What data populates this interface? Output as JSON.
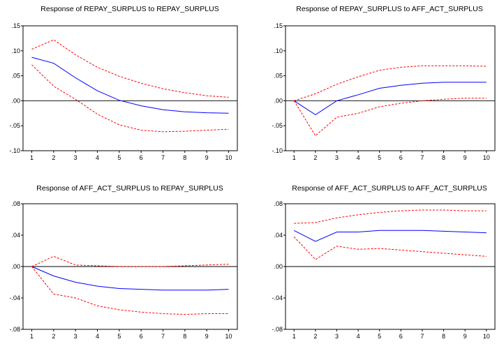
{
  "chart_data": [
    {
      "type": "line",
      "title": "Response of REPAY_SURPLUS to REPAY_SURPLUS",
      "x": [
        1,
        2,
        3,
        4,
        5,
        6,
        7,
        8,
        9,
        10
      ],
      "xlim": [
        0.6,
        10.4
      ],
      "ylim": [
        -0.1,
        0.15
      ],
      "yticks": [
        -0.1,
        -0.05,
        0.0,
        0.05,
        0.1,
        0.15
      ],
      "ytick_labels": [
        "-.10",
        "-.05",
        ".00",
        ".05",
        ".10",
        ".15"
      ],
      "zero_line": true,
      "series": [
        {
          "role": "response",
          "color": "#0000ff",
          "dashed": false,
          "values": [
            0.087,
            0.075,
            0.046,
            0.02,
            0.001,
            -0.01,
            -0.018,
            -0.022,
            -0.024,
            -0.025
          ]
        },
        {
          "role": "upper band",
          "color": "#ff0000",
          "dashed": true,
          "values": [
            0.103,
            0.122,
            0.092,
            0.067,
            0.049,
            0.035,
            0.024,
            0.016,
            0.01,
            0.007
          ]
        },
        {
          "role": "lower band",
          "color": "#ff0000",
          "dashed": true,
          "values": [
            0.072,
            0.029,
            0.003,
            -0.027,
            -0.048,
            -0.059,
            -0.062,
            -0.061,
            -0.059,
            -0.057
          ]
        }
      ]
    },
    {
      "type": "line",
      "title": "Response of REPAY_SURPLUS to AFF_ACT_SURPLUS",
      "x": [
        1,
        2,
        3,
        4,
        5,
        6,
        7,
        8,
        9,
        10
      ],
      "xlim": [
        0.6,
        10.4
      ],
      "ylim": [
        -0.1,
        0.15
      ],
      "yticks": [
        -0.1,
        -0.05,
        0.0,
        0.05,
        0.1,
        0.15
      ],
      "ytick_labels": [
        "-.10",
        "-.05",
        ".00",
        ".05",
        ".10",
        ".15"
      ],
      "zero_line": true,
      "series": [
        {
          "role": "response",
          "color": "#0000ff",
          "dashed": false,
          "values": [
            0.0,
            -0.028,
            0.0,
            0.012,
            0.025,
            0.031,
            0.035,
            0.037,
            0.037,
            0.037
          ]
        },
        {
          "role": "upper band",
          "color": "#ff0000",
          "dashed": true,
          "values": [
            0.0,
            0.014,
            0.033,
            0.048,
            0.061,
            0.067,
            0.07,
            0.07,
            0.07,
            0.069
          ]
        },
        {
          "role": "lower band",
          "color": "#ff0000",
          "dashed": true,
          "values": [
            0.0,
            -0.07,
            -0.033,
            -0.025,
            -0.012,
            -0.005,
            0.0,
            0.003,
            0.005,
            0.005
          ]
        }
      ]
    },
    {
      "type": "line",
      "title": "Response of AFF_ACT_SURPLUS to REPAY_SURPLUS",
      "x": [
        1,
        2,
        3,
        4,
        5,
        6,
        7,
        8,
        9,
        10
      ],
      "xlim": [
        0.6,
        10.4
      ],
      "ylim": [
        -0.08,
        0.08
      ],
      "yticks": [
        -0.08,
        -0.04,
        0.0,
        0.04,
        0.08
      ],
      "ytick_labels": [
        "-.08",
        "-.04",
        ".00",
        ".04",
        ".08"
      ],
      "zero_line": true,
      "series": [
        {
          "role": "response",
          "color": "#0000ff",
          "dashed": false,
          "values": [
            0.0,
            -0.012,
            -0.02,
            -0.025,
            -0.028,
            -0.029,
            -0.03,
            -0.03,
            -0.03,
            -0.029
          ]
        },
        {
          "role": "upper band",
          "color": "#ff0000",
          "dashed": true,
          "values": [
            0.0,
            0.013,
            0.002,
            0.001,
            0.0,
            0.0,
            0.0,
            0.001,
            0.002,
            0.003
          ]
        },
        {
          "role": "lower band",
          "color": "#ff0000",
          "dashed": true,
          "values": [
            0.0,
            -0.035,
            -0.04,
            -0.05,
            -0.055,
            -0.058,
            -0.06,
            -0.061,
            -0.06,
            -0.06
          ]
        }
      ]
    },
    {
      "type": "line",
      "title": "Response of AFF_ACT_SURPLUS to AFF_ACT_SURPLUS",
      "x": [
        1,
        2,
        3,
        4,
        5,
        6,
        7,
        8,
        9,
        10
      ],
      "xlim": [
        0.6,
        10.4
      ],
      "ylim": [
        -0.08,
        0.08
      ],
      "yticks": [
        -0.08,
        -0.04,
        0.0,
        0.04,
        0.08
      ],
      "ytick_labels": [
        "-.08",
        "-.04",
        ".00",
        ".04",
        ".08"
      ],
      "zero_line": true,
      "series": [
        {
          "role": "response",
          "color": "#0000ff",
          "dashed": false,
          "values": [
            0.046,
            0.032,
            0.044,
            0.044,
            0.046,
            0.046,
            0.046,
            0.045,
            0.044,
            0.043
          ]
        },
        {
          "role": "upper band",
          "color": "#ff0000",
          "dashed": true,
          "values": [
            0.055,
            0.056,
            0.062,
            0.066,
            0.069,
            0.071,
            0.072,
            0.072,
            0.071,
            0.071
          ]
        },
        {
          "role": "lower band",
          "color": "#ff0000",
          "dashed": true,
          "values": [
            0.038,
            0.009,
            0.026,
            0.022,
            0.023,
            0.021,
            0.019,
            0.017,
            0.015,
            0.013
          ]
        }
      ]
    }
  ]
}
